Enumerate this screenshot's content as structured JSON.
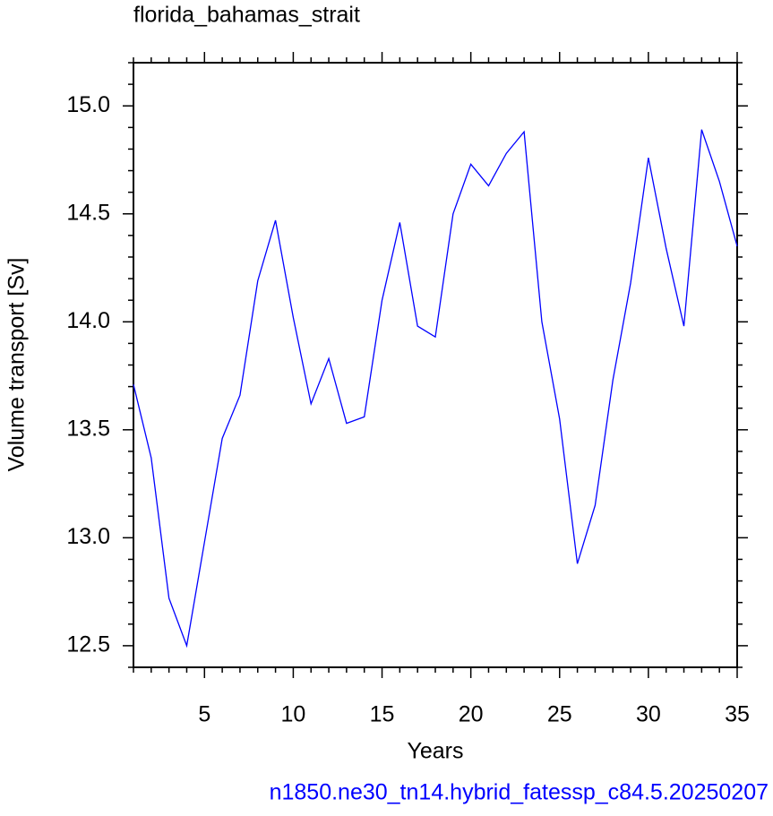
{
  "chart_data": {
    "type": "line",
    "title": "florida_bahamas_strait",
    "x_label": "Years",
    "y_label": "Volume transport [Sv]",
    "caption": "n1850.ne30_tn14.hybrid_fatessp_c84.5.20250207",
    "color": "#0000ff",
    "x": [
      1,
      2,
      3,
      4,
      5,
      6,
      7,
      8,
      9,
      10,
      11,
      12,
      13,
      14,
      15,
      16,
      17,
      18,
      19,
      20,
      21,
      22,
      23,
      24,
      25,
      26,
      27,
      28,
      29,
      30,
      31,
      32,
      33,
      34,
      35
    ],
    "values": [
      13.71,
      13.37,
      12.72,
      12.5,
      12.98,
      13.46,
      13.66,
      14.19,
      14.47,
      14.02,
      13.62,
      13.83,
      13.53,
      13.56,
      14.1,
      14.46,
      13.98,
      13.93,
      14.5,
      14.73,
      14.63,
      14.78,
      14.88,
      14.0,
      13.55,
      12.88,
      13.15,
      13.73,
      14.18,
      14.76,
      14.34,
      13.98,
      14.89,
      14.65,
      14.35
    ],
    "xlim": [
      1,
      35
    ],
    "xticks": [
      5,
      10,
      15,
      20,
      25,
      30,
      35
    ],
    "ylim": [
      12.4,
      15.2
    ],
    "yticks": [
      12.5,
      {
        "value": 13,
        "label": "13.0"
      },
      13.5,
      {
        "value": 14,
        "label": "14.0"
      },
      14.5,
      {
        "value": 15,
        "label": "15.0"
      }
    ]
  }
}
